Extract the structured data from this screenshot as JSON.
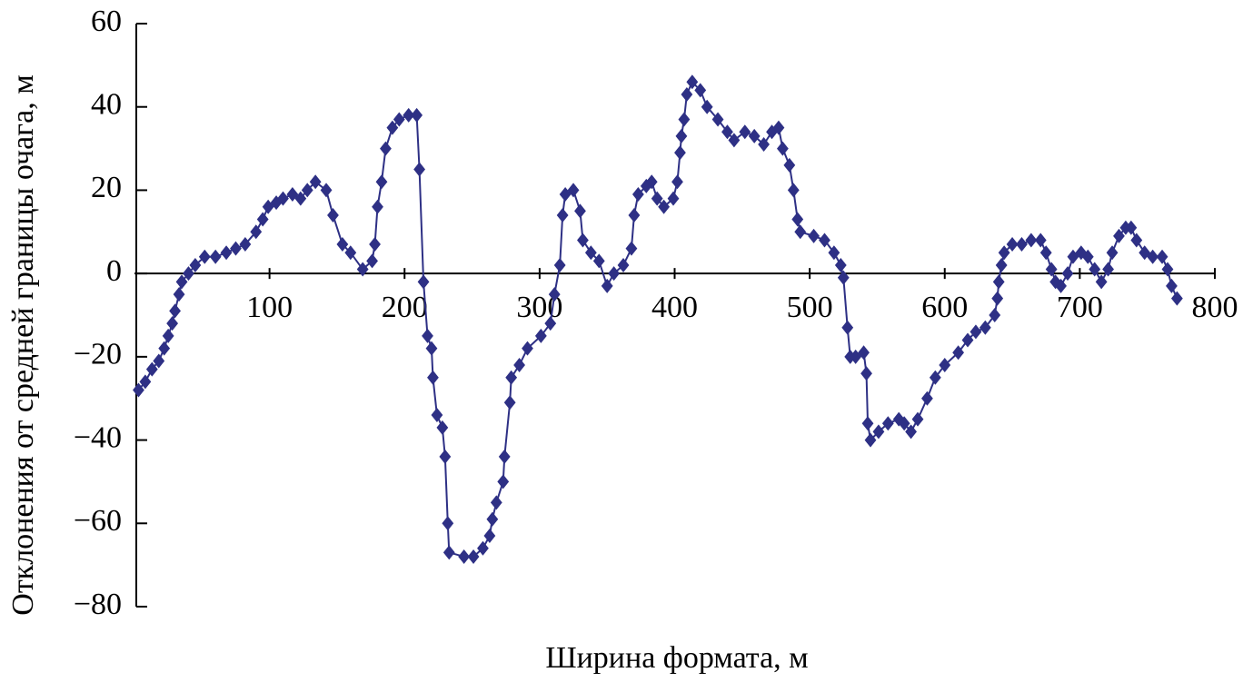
{
  "chart_data": {
    "type": "line",
    "xlabel": "Ширина формата, м",
    "ylabel": "Отклонения от средней границы очага, м",
    "x": [
      3,
      8,
      13,
      18,
      22,
      25,
      28,
      30,
      33,
      35,
      40,
      45,
      52,
      60,
      68,
      75,
      82,
      90,
      95,
      99,
      105,
      110,
      117,
      123,
      128,
      134,
      142,
      147,
      154,
      160,
      169,
      176,
      178,
      180,
      183,
      186,
      191,
      196,
      203,
      209,
      211,
      214,
      217,
      220,
      221,
      224,
      228,
      230,
      232,
      233,
      244,
      251,
      258,
      263,
      265,
      268,
      273,
      274,
      278,
      279,
      285,
      291,
      301,
      308,
      311,
      315,
      317,
      319,
      325,
      330,
      332,
      338,
      344,
      350,
      355,
      362,
      368,
      370,
      373,
      379,
      383,
      387,
      392,
      399,
      402,
      404,
      405,
      407,
      409,
      413,
      419,
      424,
      432,
      439,
      444,
      452,
      459,
      466,
      472,
      477,
      480,
      485,
      488,
      491,
      493,
      503,
      511,
      518,
      523,
      525,
      528,
      530,
      534,
      540,
      542,
      543,
      545,
      551,
      558,
      566,
      570,
      575,
      580,
      587,
      593,
      600,
      610,
      617,
      623,
      630,
      637,
      639,
      640,
      642,
      644,
      650,
      657,
      664,
      671,
      675,
      679,
      682,
      686,
      691,
      695,
      701,
      706,
      711,
      716,
      721,
      724,
      729,
      734,
      738,
      742,
      748,
      754,
      761,
      765,
      768,
      772
    ],
    "series": [
      {
        "color": "#2e3085",
        "values": [
          -28,
          -26,
          -23,
          -21,
          -18,
          -15,
          -12,
          -9,
          -5,
          -2,
          0,
          2,
          4,
          4,
          5,
          6,
          7,
          10,
          13,
          16,
          17,
          18,
          19,
          18,
          20,
          22,
          20,
          14,
          7,
          5,
          1,
          3,
          7,
          16,
          22,
          30,
          35,
          37,
          38,
          38,
          25,
          -2,
          -15,
          -18,
          -25,
          -34,
          -37,
          -44,
          -60,
          -67,
          -68,
          -68,
          -66,
          -63,
          -59,
          -55,
          -50,
          -44,
          -31,
          -25,
          -22,
          -18,
          -15,
          -12,
          -5,
          2,
          14,
          19,
          20,
          15,
          8,
          5,
          3,
          -3,
          0,
          2,
          6,
          14,
          19,
          21,
          22,
          18,
          16,
          18,
          22,
          29,
          33,
          37,
          43,
          46,
          44,
          40,
          37,
          34,
          32,
          34,
          33,
          31,
          34,
          35,
          30,
          26,
          20,
          13,
          10,
          9,
          8,
          5,
          2,
          -1,
          -13,
          -20,
          -20,
          -19,
          -24,
          -36,
          -40,
          -38,
          -36,
          -35,
          -36,
          -38,
          -35,
          -30,
          -25,
          -22,
          -19,
          -16,
          -14,
          -13,
          -10,
          -6,
          -2,
          2,
          5,
          7,
          7,
          8,
          8,
          5,
          1,
          -2,
          -3,
          0,
          4,
          5,
          4,
          1,
          -2,
          1,
          5,
          9,
          11,
          11,
          8,
          5,
          4,
          4,
          1,
          -3,
          -6
        ]
      }
    ],
    "xlim": [
      0,
      800
    ],
    "xticks": [
      100,
      200,
      300,
      400,
      500,
      600,
      700,
      800
    ],
    "ylim": [
      -80,
      60
    ],
    "yticks": [
      {
        "value": -80,
        "label": "−80"
      },
      {
        "value": -60,
        "label": "−60"
      },
      {
        "value": -40,
        "label": "−40"
      },
      {
        "value": -20,
        "label": "−20"
      },
      0,
      20,
      40,
      60
    ]
  }
}
